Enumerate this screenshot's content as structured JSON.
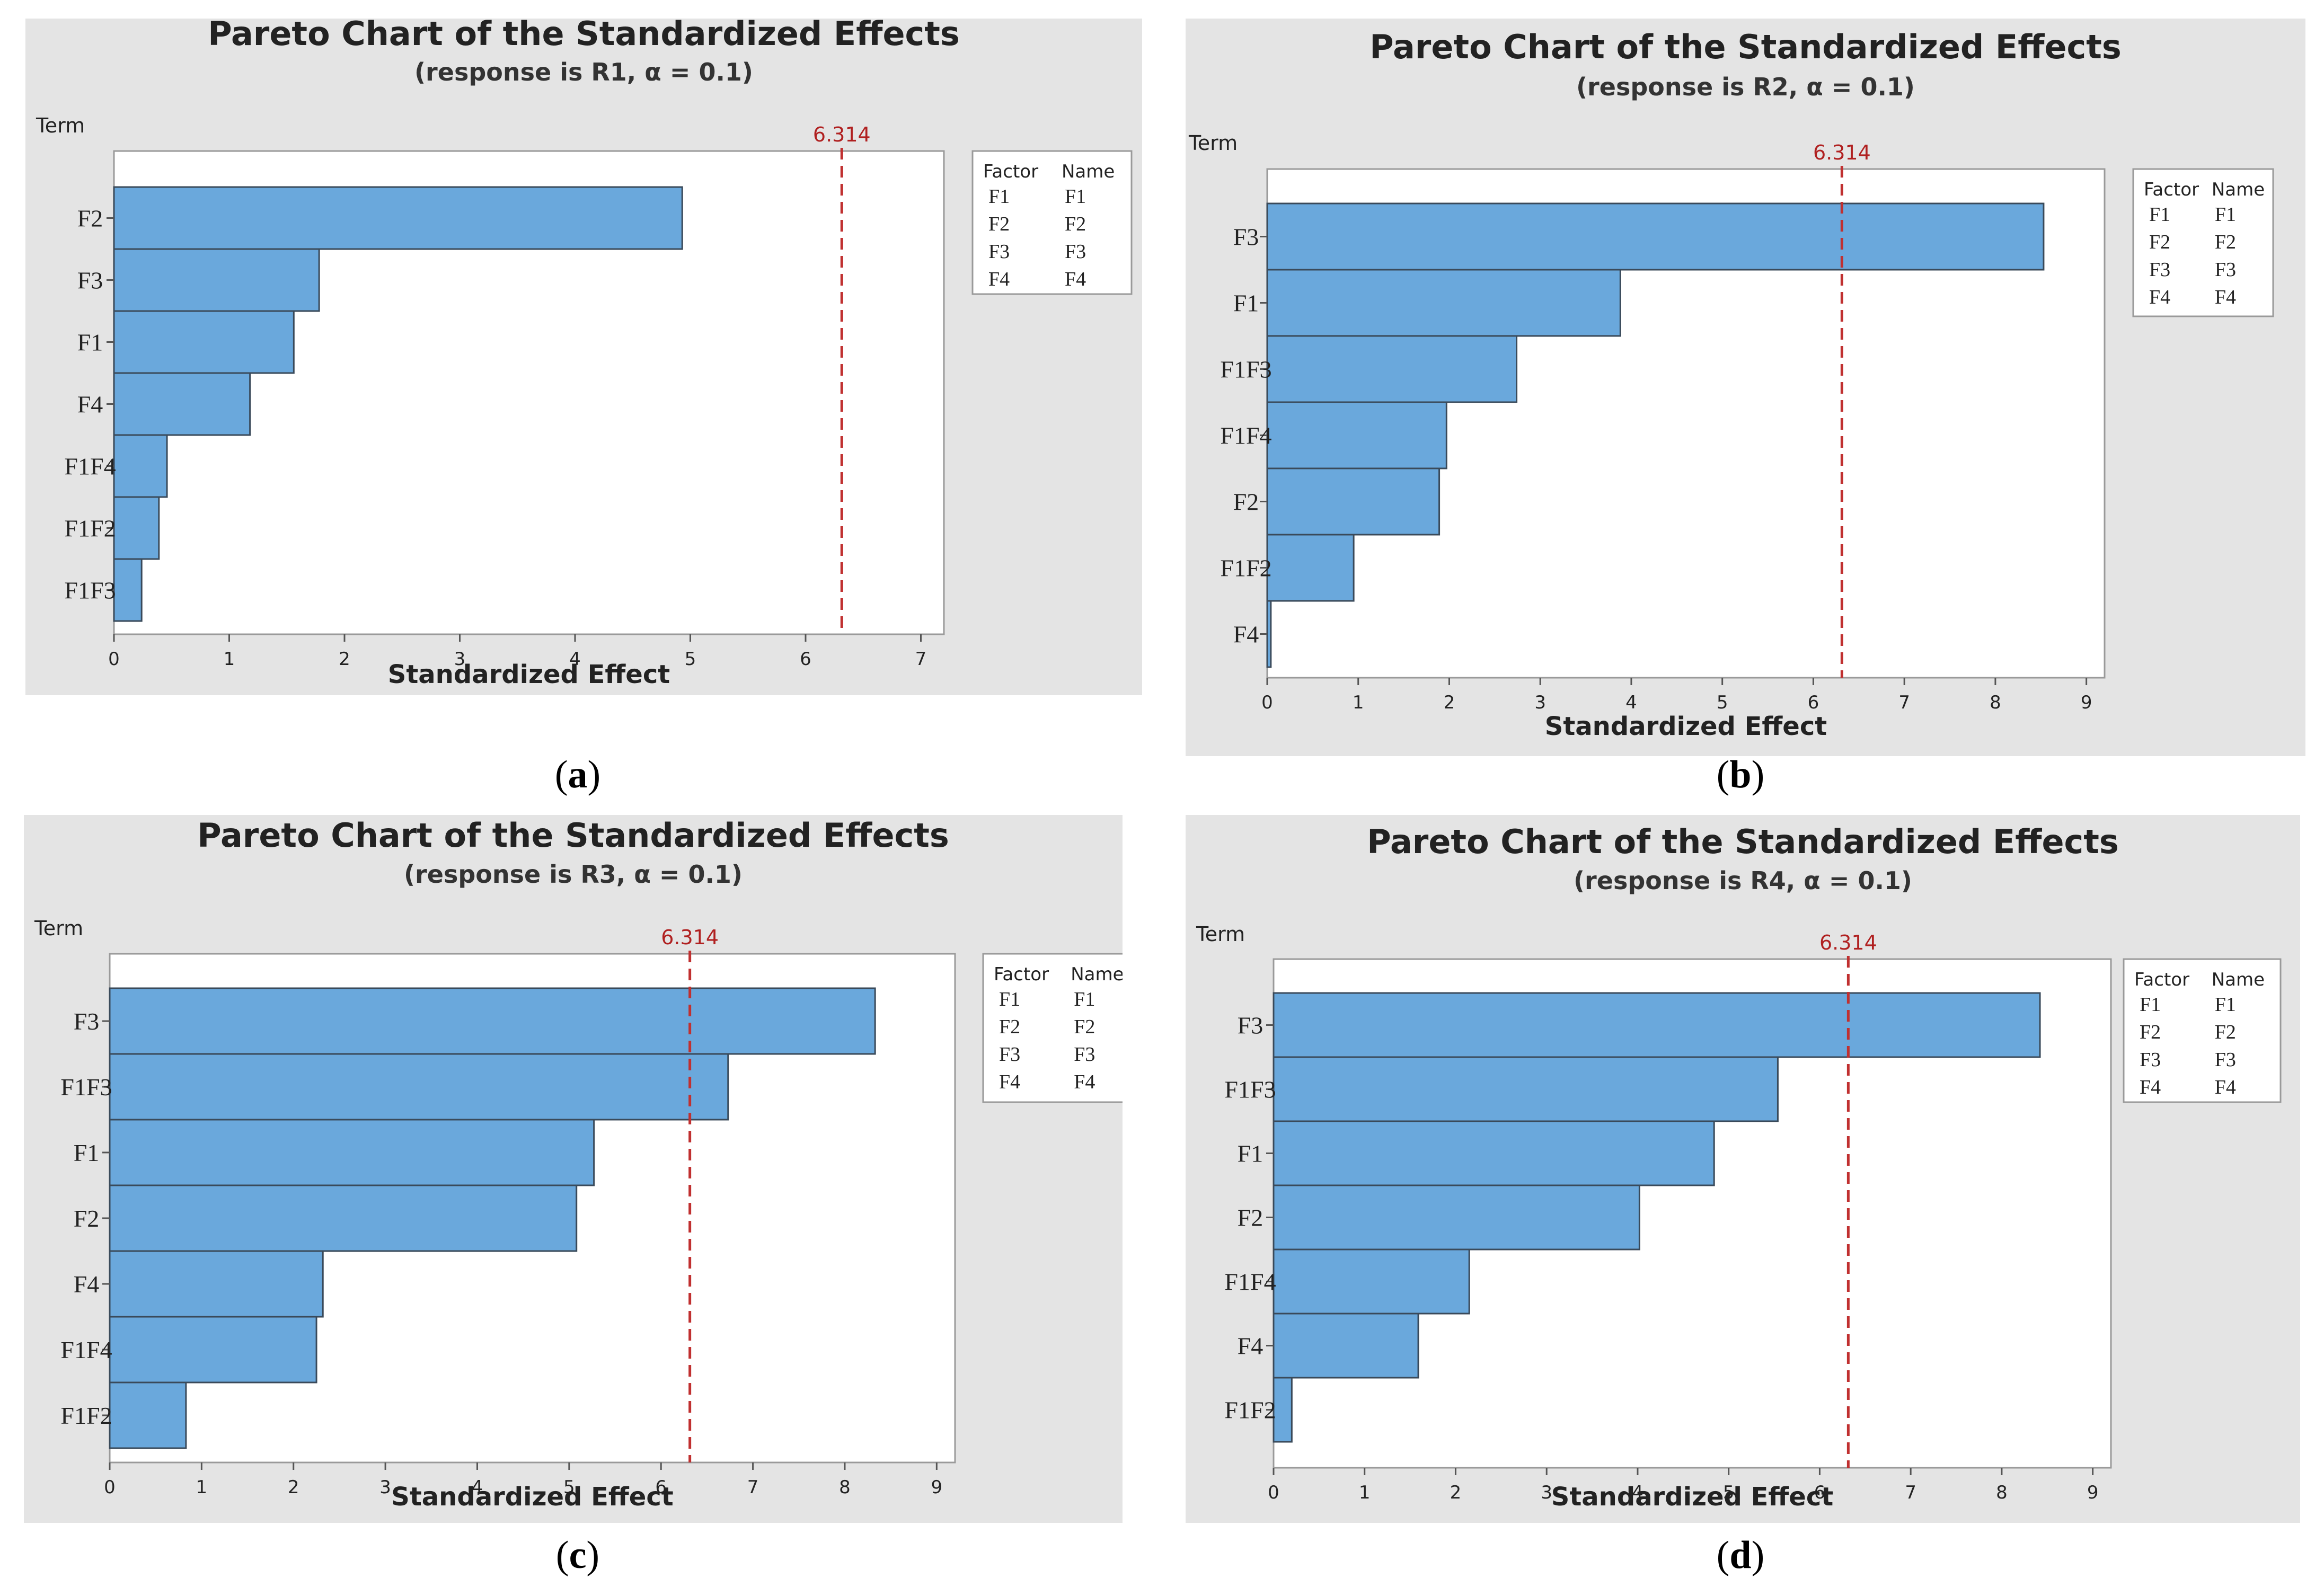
{
  "chart_data": [
    {
      "type": "bar",
      "orientation": "horizontal",
      "panel": "a",
      "caption": "a",
      "title": "Pareto Chart of the Standardized Effects",
      "subtitle": "(response is R1, α = 0.1)",
      "ylabel": "Term",
      "xlabel": "Standardized Effect",
      "categories": [
        "F2",
        "F3",
        "F1",
        "F4",
        "F1F4",
        "F1F2",
        "F1F3"
      ],
      "values": [
        4.93,
        1.78,
        1.56,
        1.18,
        0.46,
        0.39,
        0.24
      ],
      "xlim": [
        0,
        7.2
      ],
      "xticks": [
        0,
        1,
        2,
        3,
        4,
        5,
        6,
        7
      ],
      "reference_line": {
        "value": 6.314,
        "label": "6.314"
      },
      "legend": {
        "headers": [
          "Factor",
          "Name"
        ],
        "rows": [
          [
            "F1",
            "F1"
          ],
          [
            "F2",
            "F2"
          ],
          [
            "F3",
            "F3"
          ],
          [
            "F4",
            "F4"
          ]
        ]
      },
      "colors": {
        "bar": "#6aa8dc",
        "bar_edge": "#3a4a5a",
        "ref": "#c03030"
      }
    },
    {
      "type": "bar",
      "orientation": "horizontal",
      "panel": "b",
      "caption": "b",
      "title": "Pareto Chart of the Standardized Effects",
      "subtitle": "(response is R2, α = 0.1)",
      "ylabel": "Term",
      "xlabel": "Standardized Effect",
      "categories": [
        "F3",
        "F1",
        "F1F3",
        "F1F4",
        "F2",
        "F1F2",
        "F4"
      ],
      "values": [
        8.53,
        3.88,
        2.74,
        1.97,
        1.89,
        0.95,
        0.04
      ],
      "xlim": [
        0,
        9.2
      ],
      "xticks": [
        0,
        1,
        2,
        3,
        4,
        5,
        6,
        7,
        8,
        9
      ],
      "reference_line": {
        "value": 6.314,
        "label": "6.314"
      },
      "legend": {
        "headers": [
          "Factor",
          "Name"
        ],
        "rows": [
          [
            "F1",
            "F1"
          ],
          [
            "F2",
            "F2"
          ],
          [
            "F3",
            "F3"
          ],
          [
            "F4",
            "F4"
          ]
        ]
      },
      "colors": {
        "bar": "#6aa8dc",
        "bar_edge": "#3a4a5a",
        "ref": "#c03030"
      }
    },
    {
      "type": "bar",
      "orientation": "horizontal",
      "panel": "c",
      "caption": "c",
      "title": "Pareto Chart of the Standardized Effects",
      "subtitle": "(response is R3, α = 0.1)",
      "ylabel": "Term",
      "xlabel": "Standardized Effect",
      "categories": [
        "F3",
        "F1F3",
        "F1",
        "F2",
        "F4",
        "F1F4",
        "F1F2"
      ],
      "values": [
        8.33,
        6.73,
        5.27,
        5.08,
        2.32,
        2.25,
        0.83
      ],
      "xlim": [
        0,
        9.2
      ],
      "xticks": [
        0,
        1,
        2,
        3,
        4,
        5,
        6,
        7,
        8,
        9
      ],
      "reference_line": {
        "value": 6.314,
        "label": "6.314"
      },
      "legend": {
        "headers": [
          "Factor",
          "Name"
        ],
        "rows": [
          [
            "F1",
            "F1"
          ],
          [
            "F2",
            "F2"
          ],
          [
            "F3",
            "F3"
          ],
          [
            "F4",
            "F4"
          ]
        ]
      },
      "colors": {
        "bar": "#6aa8dc",
        "bar_edge": "#3a4a5a",
        "ref": "#c03030"
      }
    },
    {
      "type": "bar",
      "orientation": "horizontal",
      "panel": "d",
      "caption": "d",
      "title": "Pareto Chart of the Standardized Effects",
      "subtitle": "(response is R4, α = 0.1)",
      "ylabel": "Term",
      "xlabel": "Standardized Effect",
      "categories": [
        "F3",
        "F1F3",
        "F1",
        "F2",
        "F1F4",
        "F4",
        "F1F2"
      ],
      "values": [
        8.42,
        5.54,
        4.84,
        4.02,
        2.15,
        1.59,
        0.2
      ],
      "xlim": [
        0,
        9.2
      ],
      "xticks": [
        0,
        1,
        2,
        3,
        4,
        5,
        6,
        7,
        8,
        9
      ],
      "reference_line": {
        "value": 6.314,
        "label": "6.314"
      },
      "legend": {
        "headers": [
          "Factor",
          "Name"
        ],
        "rows": [
          [
            "F1",
            "F1"
          ],
          [
            "F2",
            "F2"
          ],
          [
            "F3",
            "F3"
          ],
          [
            "F4",
            "F4"
          ]
        ]
      },
      "colors": {
        "bar": "#6aa8dc",
        "bar_edge": "#3a4a5a",
        "ref": "#c03030"
      }
    }
  ]
}
